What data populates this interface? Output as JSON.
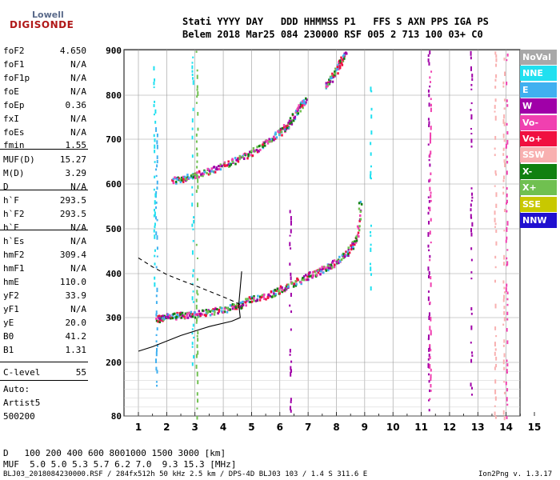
{
  "logo": {
    "brand_top": "Lowell",
    "brand_bottom": "DIGISONDE"
  },
  "header": {
    "line1": "Stati YYYY DAY   DDD HHMMSS P1   FFS S AXN PPS IGA PS",
    "line2": "Belem 2018 Mar25 084 230000 RSF 005 2 713 100 03+ C0"
  },
  "parameters": [
    {
      "name": "foF2",
      "value": "4.650"
    },
    {
      "name": "foF1",
      "value": "N/A"
    },
    {
      "name": "foF1p",
      "value": "N/A"
    },
    {
      "name": "foE",
      "value": "N/A"
    },
    {
      "name": "foEp",
      "value": "0.36"
    },
    {
      "name": "fxI",
      "value": "N/A"
    },
    {
      "name": "foEs",
      "value": "N/A"
    },
    {
      "name": "fmin",
      "value": "1.55"
    },
    {
      "name": "MUF(D)",
      "value": "15.27"
    },
    {
      "name": "M(D)",
      "value": "3.29"
    },
    {
      "name": "D",
      "value": "N/A"
    },
    {
      "name": "h`F",
      "value": "293.5"
    },
    {
      "name": "h`F2",
      "value": "293.5"
    },
    {
      "name": "h`E",
      "value": "N/A"
    },
    {
      "name": "h`Es",
      "value": "N/A"
    },
    {
      "name": "hmF2",
      "value": "309.4"
    },
    {
      "name": "hmF1",
      "value": "N/A"
    },
    {
      "name": "hmE",
      "value": "110.0"
    },
    {
      "name": "yF2",
      "value": "33.9"
    },
    {
      "name": "yF1",
      "value": "N/A"
    },
    {
      "name": "yE",
      "value": "20.0"
    },
    {
      "name": "B0",
      "value": "41.2"
    },
    {
      "name": "B1",
      "value": "1.31"
    },
    {
      "name": "C-level",
      "value": "55"
    }
  ],
  "autoscaling": {
    "label": "Auto:",
    "program": "Artist5",
    "version": "500200"
  },
  "muf_table": {
    "d_label": "D",
    "d_values": [
      "100",
      "200",
      "400",
      "600",
      "800",
      "1000",
      "1500",
      "3000"
    ],
    "d_unit": "[km]",
    "muf_label": "MUF",
    "muf_values": [
      "5.0",
      "5.0",
      "5.3",
      "5.7",
      "6.2",
      "7.0",
      "9.3",
      "15.3"
    ],
    "muf_unit": "[MHz]"
  },
  "footer": {
    "file_info": "BLJ03_2018084230000.RSF / 284fx512h 50 kHz 2.5 km / DPS-4D BLJ03 103 / 1.4 S 311.6 E",
    "version": "Ion2Png v. 1.3.17"
  },
  "colors": {
    "NoVal": "#a8a8a8",
    "NNE": "#20e0f0",
    "E": "#40b0f0",
    "W": "#a000a8",
    "Vo-": "#f040b0",
    "Vo+": "#f01040",
    "SSW": "#f8b0b0",
    "X-": "#108010",
    "X+": "#70c050",
    "SSE": "#c8c800",
    "NNW": "#2010d0"
  },
  "chart_data": {
    "type": "scatter",
    "xlim": [
      1,
      15
    ],
    "ylim": [
      80,
      900
    ],
    "x_ticks": [
      "1",
      "2",
      "3",
      "4",
      "5",
      "6",
      "7",
      "8",
      "9",
      "10",
      "11",
      "12",
      "13",
      "14",
      "15"
    ],
    "y_ticks": [
      "80",
      "200",
      "300",
      "400",
      "500",
      "600",
      "700",
      "800",
      "900"
    ],
    "grid": true,
    "legend": [
      "NoVal",
      "NNE",
      "E",
      "W",
      "Vo-",
      "Vo+",
      "SSW",
      "X-",
      "X+",
      "SSE",
      "NNW"
    ],
    "legend_position": "right",
    "traces": [
      {
        "mode": "O-trace F2 main",
        "x": [
          1.65,
          1.8,
          2.0,
          2.3,
          2.6,
          3.0,
          3.4,
          3.8,
          4.2,
          4.5,
          4.65,
          4.9,
          5.3,
          5.7,
          6.0,
          6.3,
          6.7,
          7.0,
          7.3,
          7.6,
          7.9,
          8.2,
          8.5,
          8.7,
          8.85
        ],
        "y": [
          297,
          299,
          302,
          304,
          306,
          308,
          312,
          316,
          322,
          326,
          330,
          340,
          347,
          355,
          363,
          372,
          385,
          395,
          403,
          413,
          423,
          438,
          455,
          480,
          575
        ]
      },
      {
        "mode": "X-trace F2",
        "x": [
          2.2,
          2.5,
          2.8,
          3.2,
          3.6,
          4.0,
          4.4,
          4.8,
          5.2,
          5.6,
          5.9,
          6.1,
          6.3,
          6.5,
          6.7,
          6.9
        ],
        "y": [
          607,
          611,
          616,
          623,
          632,
          642,
          652,
          664,
          678,
          697,
          712,
          722,
          735,
          755,
          775,
          792
        ]
      },
      {
        "mode": "multihop",
        "x": [
          7.6,
          7.8,
          8.0,
          8.15,
          8.3
        ],
        "y": [
          820,
          835,
          860,
          875,
          895
        ]
      }
    ],
    "profile": {
      "solid": {
        "x": [
          1.0,
          1.5,
          2.5,
          3.5,
          4.3,
          4.6,
          4.55,
          4.65
        ],
        "y": [
          225,
          235,
          260,
          280,
          292,
          300,
          330,
          405
        ]
      },
      "dashed": {
        "x": [
          1.0,
          1.5,
          2.0,
          2.5,
          3.0,
          3.5,
          4.0,
          4.4,
          4.6
        ],
        "y": [
          435,
          415,
          398,
          385,
          373,
          360,
          347,
          336,
          330
        ]
      }
    },
    "vertical_bands": [
      {
        "x": 1.62,
        "ymin": 150,
        "ymax": 760,
        "color": "#40b0f0"
      },
      {
        "x": 1.55,
        "ymin": 380,
        "ymax": 900,
        "color": "#20e0f0"
      },
      {
        "x": 2.9,
        "ymin": 200,
        "ymax": 900,
        "color": "#20e0f0"
      },
      {
        "x": 3.05,
        "ymin": 80,
        "ymax": 900,
        "color": "#70c050"
      },
      {
        "x": 6.35,
        "ymin": 80,
        "ymax": 580,
        "color": "#a000a8"
      },
      {
        "x": 9.2,
        "ymin": 350,
        "ymax": 880,
        "color": "#20e0f0"
      },
      {
        "x": 11.25,
        "ymin": 80,
        "ymax": 900,
        "color": "#a000a8"
      },
      {
        "x": 11.3,
        "ymin": 120,
        "ymax": 900,
        "color": "#f040b0"
      },
      {
        "x": 12.75,
        "ymin": 130,
        "ymax": 900,
        "color": "#a000a8"
      },
      {
        "x": 13.6,
        "ymin": 80,
        "ymax": 900,
        "color": "#f8b0b0"
      },
      {
        "x": 13.9,
        "ymin": 80,
        "ymax": 900,
        "color": "#f8b0b0"
      },
      {
        "x": 14.0,
        "ymin": 80,
        "ymax": 900,
        "color": "#f040b0"
      }
    ]
  }
}
